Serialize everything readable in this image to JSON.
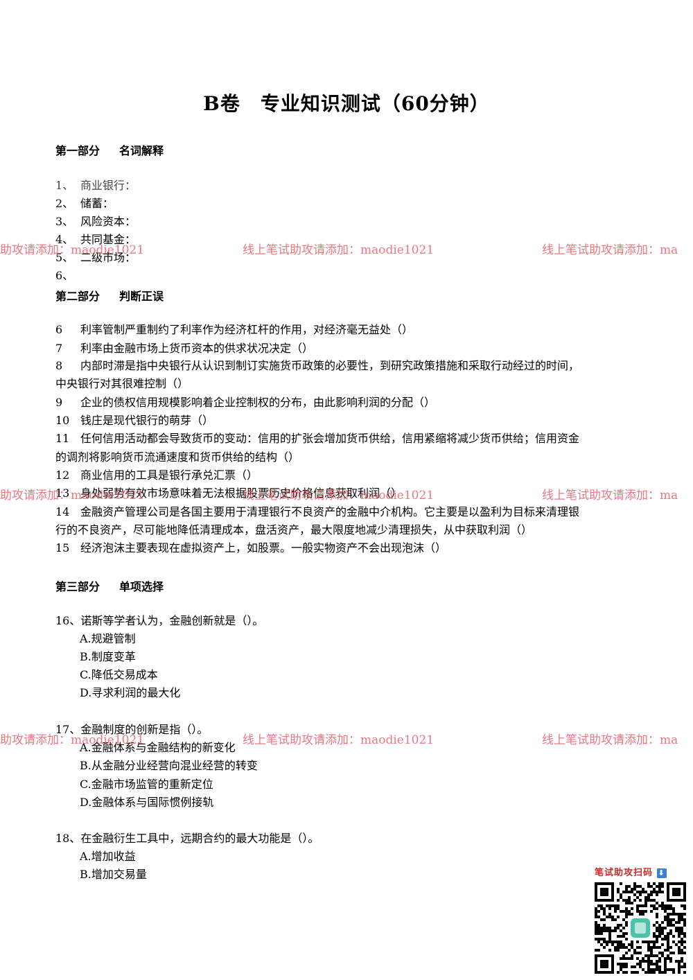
{
  "title": "B卷　专业知识测试（60分钟）",
  "part1": {
    "heading_a": "第一部分",
    "heading_b": "名词解释",
    "items": [
      {
        "num": "1、",
        "text": "商业银行："
      },
      {
        "num": "2、",
        "text": "储蓄："
      },
      {
        "num": "3、",
        "text": "风险资本："
      },
      {
        "num": "4、",
        "text": "共同基金："
      },
      {
        "num": "5、",
        "text": "二级市场："
      },
      {
        "num": "6、",
        "text": ""
      }
    ]
  },
  "part2": {
    "heading_a": "第二部分",
    "heading_b": "判断正误",
    "items": [
      {
        "num": "6",
        "text": "利率管制严重制约了利率作为经济杠杆的作用，对经济毫无益处（）"
      },
      {
        "num": "7",
        "text": "利率由金融市场上货币资本的供求状况决定（）"
      },
      {
        "num": "8",
        "text": "内部时滞是指中央银行从认识到制订实施货币政策的必要性，到研究政策措施和采取行动经过的时间，",
        "cont": "中央银行对其很难控制（）"
      },
      {
        "num": "9",
        "text": "企业的债权信用规模影响着企业控制权的分布，由此影响利润的分配（）"
      },
      {
        "num": "10",
        "text": "钱庄是现代银行的萌芽（）"
      },
      {
        "num": "11",
        "text": "任何信用活动都会导致货币的变动：信用的扩张会增加货币供给，信用紧缩将减少货币供给；信用资金",
        "cont": "的调剂将影响货币流通速度和货币供给的结构（）"
      },
      {
        "num": "12",
        "text": "商业信用的工具是银行承兑汇票（）"
      },
      {
        "num": "13",
        "text": "身处弱势有效市场意味着无法根据股票历史价格信息获取利润（）"
      },
      {
        "num": "14",
        "text": "金融资产管理公司是各国主要用于清理银行不良资产的金融中介机构。它主要是以盈利为目标来清理银",
        "cont": "行的不良资产，尽可能地降低清理成本，盘活资产，最大限度地减少清理损失，从中获取利润（）"
      },
      {
        "num": "15",
        "text": "经济泡沫主要表现在虚拟资产上，如股票。一般实物资产不会出现泡沫（）"
      }
    ]
  },
  "part3": {
    "heading_a": "第三部分",
    "heading_b": "单项选择",
    "questions": [
      {
        "stem": "16、诺斯等学者认为，金融创新就是（）。",
        "options": [
          "A.规避管制",
          "B.制度变革",
          "C.降低交易成本",
          "D.寻求利润的最大化"
        ]
      },
      {
        "stem": "17、金融制度的创新是指（）。",
        "options": [
          "A.金融体系与金融结构的新变化",
          "B.从金融分业经营向混业经营的转变",
          "C.金融市场监管的重新定位",
          "D.金融体系与国际惯例接轨"
        ]
      },
      {
        "stem": "18、在金融衍生工具中，远期合约的最大功能是（）。",
        "options": [
          "A.增加收益",
          "B.增加交易量"
        ]
      }
    ]
  },
  "watermark": {
    "left": "助攻请添加：maodie1021",
    "center": "线上笔试助攻请添加：maodie1021",
    "right": "线上笔试助攻请添加：ma"
  },
  "qr": {
    "caption": "笔试助攻扫码",
    "arrow": "⬇"
  }
}
